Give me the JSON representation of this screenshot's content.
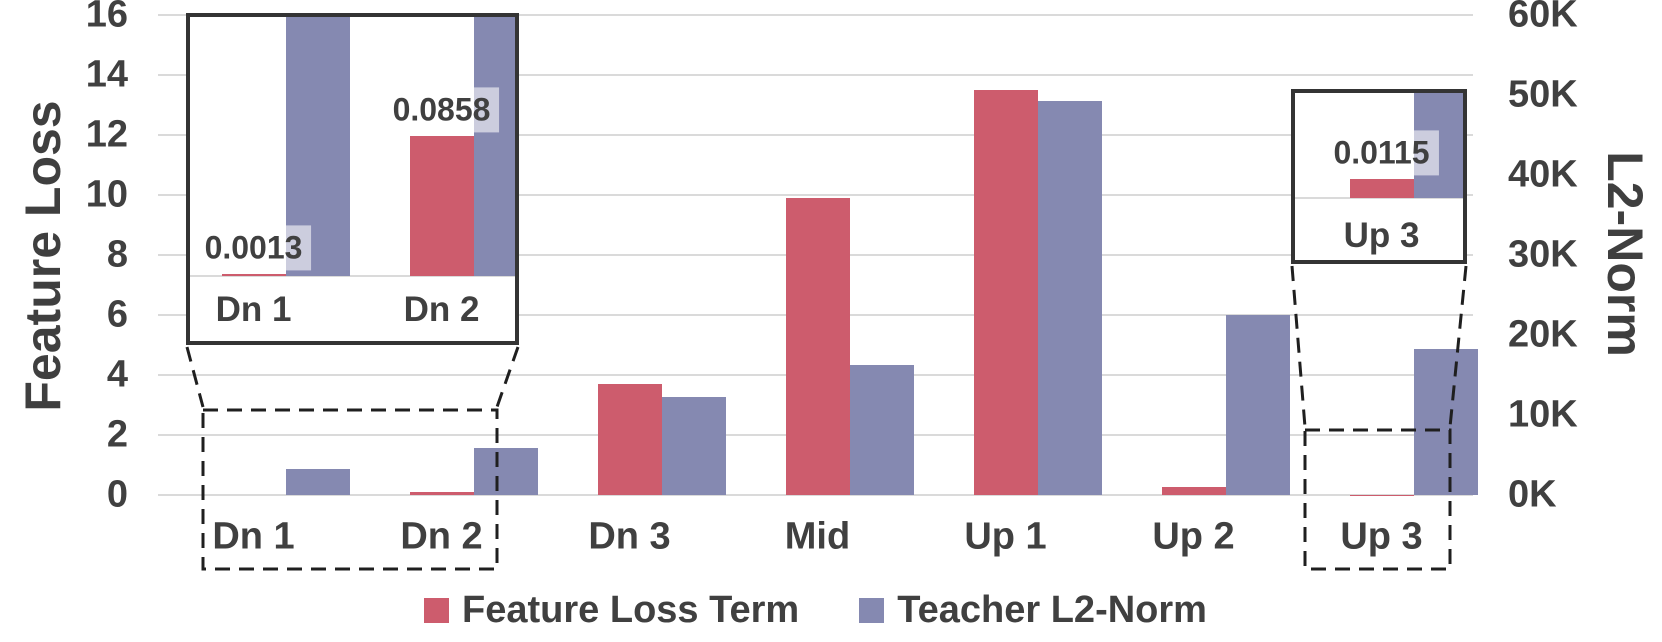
{
  "chart_data": {
    "type": "bar",
    "title": "",
    "categories": [
      "Dn 1",
      "Dn 2",
      "Dn 3",
      "Mid",
      "Up 1",
      "Up 2",
      "Up 3"
    ],
    "series": [
      {
        "name": "Feature Loss Term",
        "axis": "left",
        "color": "#cd5c6d",
        "values": [
          0.0013,
          0.0858,
          3.7,
          9.9,
          13.5,
          0.28,
          0.0115
        ]
      },
      {
        "name": "Teacher L2-Norm",
        "axis": "right",
        "color": "#8589b1",
        "values": [
          3200,
          5900,
          12200,
          16200,
          49300,
          22500,
          18200
        ]
      }
    ],
    "left_axis": {
      "label": "Feature Loss",
      "min": 0,
      "max": 16,
      "ticks": [
        "16",
        "14",
        "12",
        "10",
        "8",
        "6",
        "4",
        "2",
        "0"
      ]
    },
    "right_axis": {
      "label": "L2-Norm",
      "min": 0,
      "max": 60000,
      "ticks": [
        "60K",
        "50K",
        "40K",
        "30K",
        "20K",
        "10K",
        "0K"
      ]
    },
    "grid": true,
    "legend_position": "bottom",
    "insets": [
      {
        "name": "zoom-inset-dn1-dn2",
        "category_indexes": [
          0,
          1
        ],
        "category_labels": [
          "Dn 1",
          "Dn 2"
        ],
        "value_labels": [
          "0.0013",
          "0.0858"
        ]
      },
      {
        "name": "zoom-inset-up3",
        "category_indexes": [
          6
        ],
        "category_labels": [
          "Up 3"
        ],
        "value_labels": [
          "0.0115"
        ]
      }
    ],
    "colors": {
      "feature_loss_bar": "#cd5c6d",
      "l2norm_bar": "#8589b1",
      "gridline": "#dadada",
      "text": "#404040",
      "inset_border": "#343434",
      "dashed_line": "#1f1f1f",
      "value_label_bg": "rgba(255,255,255,0.58)"
    }
  }
}
